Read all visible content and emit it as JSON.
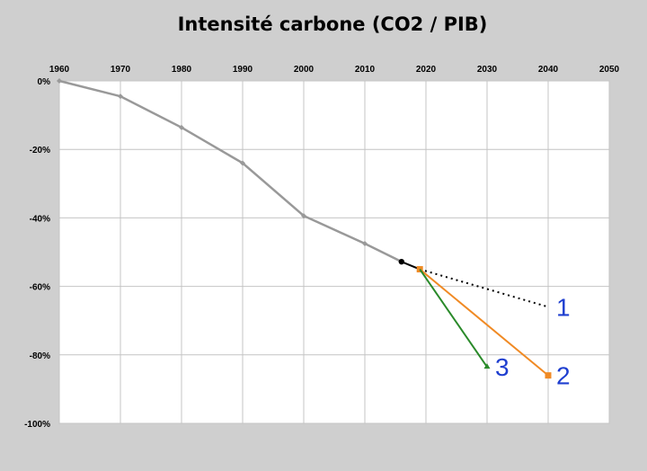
{
  "chart_data": {
    "type": "line",
    "title": "Intensité carbone (CO2 / PIB)",
    "xlabel": "",
    "ylabel": "",
    "xlim": [
      1960,
      2050
    ],
    "ylim": [
      -100,
      0
    ],
    "x_ticks": [
      1960,
      1970,
      1980,
      1990,
      2000,
      2010,
      2020,
      2030,
      2040,
      2050
    ],
    "x_tick_labels": [
      "1960",
      "1970",
      "1980",
      "1990",
      "2000",
      "2010",
      "2020",
      "2030",
      "2040",
      "2050"
    ],
    "y_ticks": [
      0,
      -20,
      -40,
      -60,
      -80,
      -100
    ],
    "y_tick_labels": [
      "0%",
      "-20%",
      "-40%",
      "-60%",
      "-80%",
      "-100%"
    ],
    "x_axis_position": "top",
    "grid": true,
    "series": [
      {
        "id": "historical",
        "color": "#999999",
        "style": "solid",
        "marker": "diamond",
        "x": [
          1960,
          1970,
          1980,
          1990,
          2000,
          2010,
          2016
        ],
        "y": [
          0,
          -4.5,
          -13.6,
          -24,
          -39.4,
          -47.5,
          -52.8
        ]
      },
      {
        "id": "recent",
        "color": "#000000",
        "style": "solid",
        "marker": "circle",
        "x": [
          2016,
          2019
        ],
        "y": [
          -52.8,
          -55
        ]
      },
      {
        "id": "scenario-1",
        "label": "1",
        "color": "#000000",
        "style": "dotted",
        "marker": "none",
        "x": [
          2019,
          2040
        ],
        "y": [
          -55,
          -66
        ]
      },
      {
        "id": "scenario-2",
        "label": "2",
        "color": "#f08a24",
        "style": "solid",
        "marker": "square",
        "x": [
          2019,
          2040
        ],
        "y": [
          -55,
          -86
        ]
      },
      {
        "id": "scenario-3",
        "label": "3",
        "color": "#2a8a2a",
        "style": "solid",
        "marker": "triangle",
        "x": [
          2019,
          2030
        ],
        "y": [
          -55,
          -83.5
        ]
      }
    ],
    "label_color": "#1f3fd0",
    "background_color": "#cfcfcf"
  }
}
